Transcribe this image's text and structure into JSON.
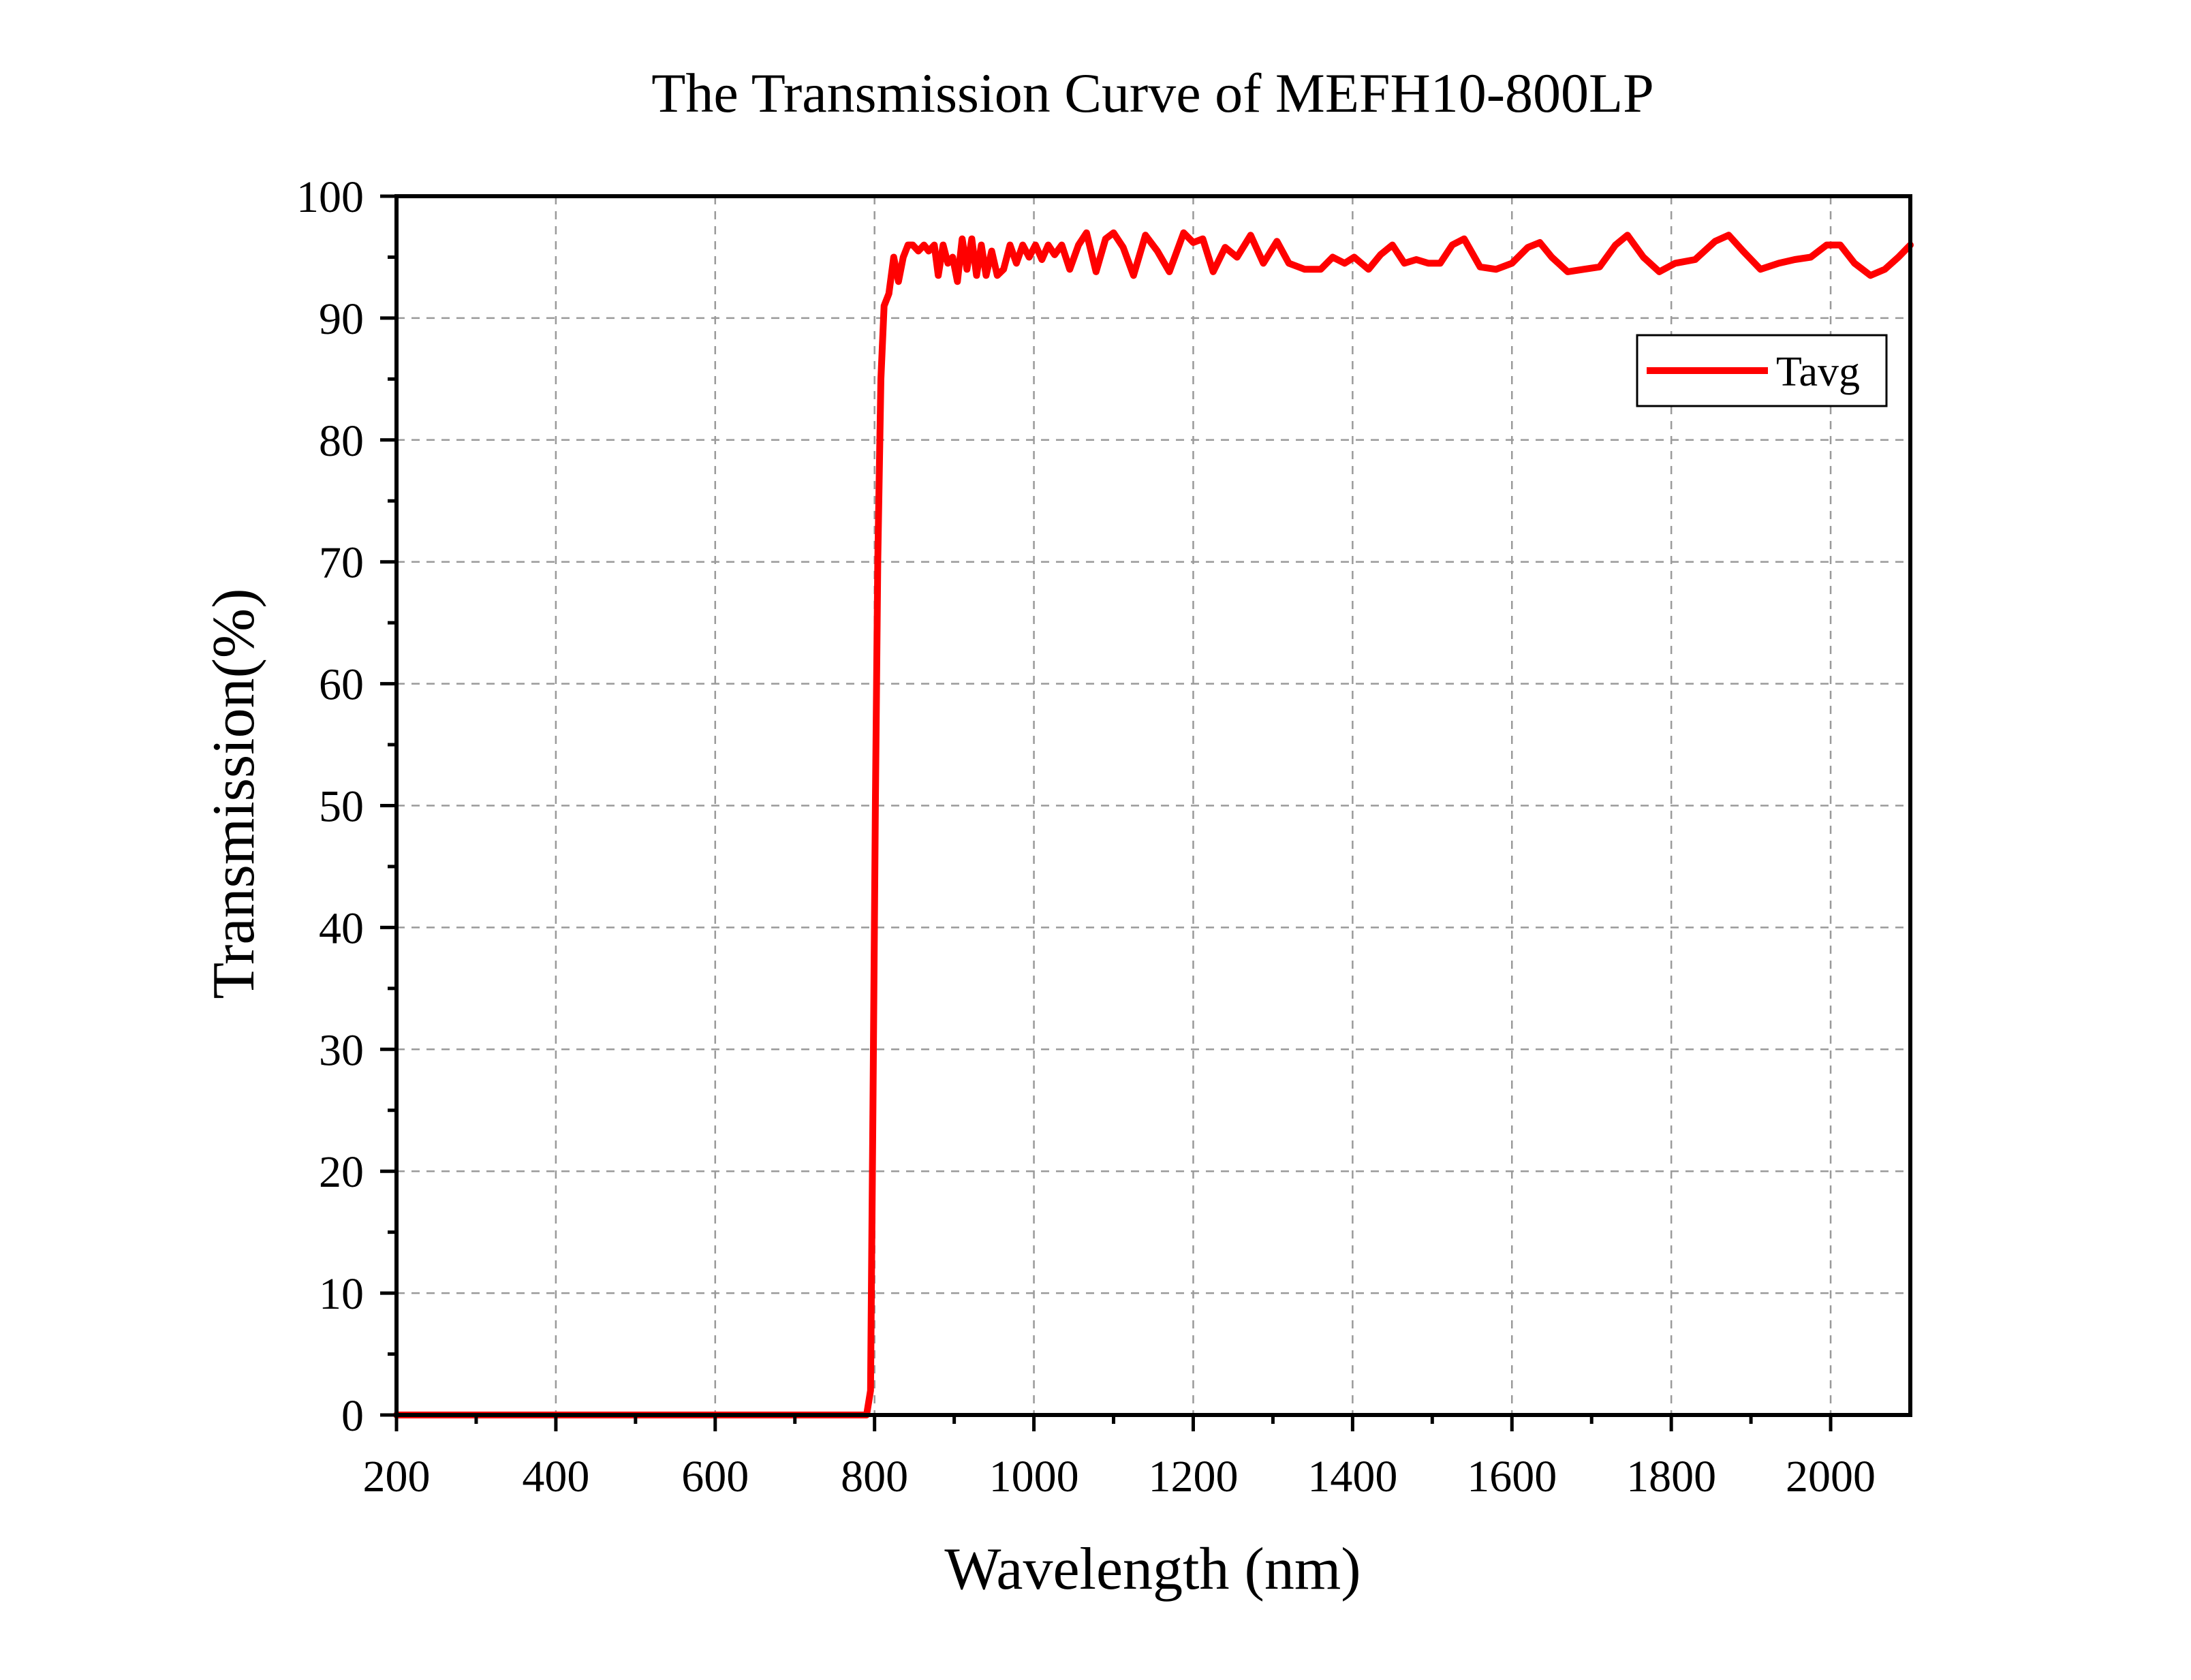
{
  "chart_data": {
    "type": "line",
    "title": "The Transmission Curve of MEFH10-800LP",
    "xlabel": "Wavelength (nm)",
    "ylabel": "Transmission(%)",
    "xlim": [
      200,
      2100
    ],
    "ylim": [
      0,
      100
    ],
    "x_ticks": [
      200,
      400,
      600,
      800,
      1000,
      1200,
      1400,
      1600,
      1800,
      2000
    ],
    "x_tick_labels": [
      "200",
      "400",
      "600",
      "800",
      "1000",
      "1200",
      "1400",
      "1600",
      "1800",
      "2000"
    ],
    "y_ticks": [
      0,
      10,
      20,
      30,
      40,
      50,
      60,
      70,
      80,
      90,
      100
    ],
    "y_tick_labels": [
      "0",
      "10",
      "20",
      "30",
      "40",
      "50",
      "60",
      "70",
      "80",
      "90",
      "100"
    ],
    "grid": true,
    "legend_position": "top-right",
    "series": [
      {
        "name": "Tavg",
        "color": "#ff0000",
        "points": [
          [
            200,
            0
          ],
          [
            400,
            0
          ],
          [
            600,
            0
          ],
          [
            790,
            0
          ],
          [
            795,
            2
          ],
          [
            798,
            25
          ],
          [
            801,
            50
          ],
          [
            804,
            70
          ],
          [
            808,
            85
          ],
          [
            812,
            91
          ],
          [
            818,
            92
          ],
          [
            824,
            95
          ],
          [
            830,
            93
          ],
          [
            836,
            95
          ],
          [
            842,
            96
          ],
          [
            848,
            96
          ],
          [
            855,
            95.5
          ],
          [
            862,
            96
          ],
          [
            868,
            95.5
          ],
          [
            875,
            96
          ],
          [
            880,
            93.5
          ],
          [
            886,
            96
          ],
          [
            892,
            94.5
          ],
          [
            898,
            95
          ],
          [
            904,
            93
          ],
          [
            910,
            96.5
          ],
          [
            916,
            94
          ],
          [
            922,
            96.5
          ],
          [
            928,
            93.5
          ],
          [
            934,
            96
          ],
          [
            940,
            93.5
          ],
          [
            947,
            95.5
          ],
          [
            954,
            93.5
          ],
          [
            962,
            94
          ],
          [
            970,
            96
          ],
          [
            978,
            94.5
          ],
          [
            986,
            96
          ],
          [
            994,
            95
          ],
          [
            1002,
            96
          ],
          [
            1010,
            94.8
          ],
          [
            1018,
            96
          ],
          [
            1026,
            95.2
          ],
          [
            1035,
            96
          ],
          [
            1045,
            94
          ],
          [
            1056,
            96
          ],
          [
            1066,
            97
          ],
          [
            1078,
            93.8
          ],
          [
            1090,
            96.5
          ],
          [
            1100,
            97
          ],
          [
            1112,
            95.8
          ],
          [
            1125,
            93.5
          ],
          [
            1140,
            96.8
          ],
          [
            1155,
            95.5
          ],
          [
            1170,
            93.8
          ],
          [
            1188,
            97
          ],
          [
            1200,
            96.2
          ],
          [
            1212,
            96.5
          ],
          [
            1225,
            93.8
          ],
          [
            1240,
            95.8
          ],
          [
            1255,
            95
          ],
          [
            1272,
            96.8
          ],
          [
            1288,
            94.5
          ],
          [
            1305,
            96.3
          ],
          [
            1320,
            94.5
          ],
          [
            1340,
            94
          ],
          [
            1360,
            94
          ],
          [
            1375,
            95
          ],
          [
            1390,
            94.5
          ],
          [
            1402,
            95
          ],
          [
            1420,
            94
          ],
          [
            1435,
            95.2
          ],
          [
            1450,
            96
          ],
          [
            1465,
            94.5
          ],
          [
            1480,
            94.8
          ],
          [
            1495,
            94.5
          ],
          [
            1510,
            94.5
          ],
          [
            1525,
            96
          ],
          [
            1540,
            96.5
          ],
          [
            1560,
            94.2
          ],
          [
            1580,
            94
          ],
          [
            1600,
            94.5
          ],
          [
            1620,
            95.8
          ],
          [
            1635,
            96.2
          ],
          [
            1650,
            95
          ],
          [
            1670,
            93.8
          ],
          [
            1690,
            94
          ],
          [
            1710,
            94.2
          ],
          [
            1730,
            96
          ],
          [
            1745,
            96.8
          ],
          [
            1765,
            95
          ],
          [
            1785,
            93.8
          ],
          [
            1805,
            94.5
          ],
          [
            1830,
            94.8
          ],
          [
            1855,
            96.3
          ],
          [
            1872,
            96.8
          ],
          [
            1890,
            95.5
          ],
          [
            1912,
            94
          ],
          [
            1935,
            94.5
          ],
          [
            1955,
            94.8
          ],
          [
            1975,
            95
          ],
          [
            1995,
            96
          ],
          [
            2012,
            96
          ],
          [
            2030,
            94.5
          ],
          [
            2050,
            93.5
          ],
          [
            2068,
            94
          ],
          [
            2085,
            95
          ],
          [
            2100,
            96
          ]
        ]
      }
    ]
  }
}
